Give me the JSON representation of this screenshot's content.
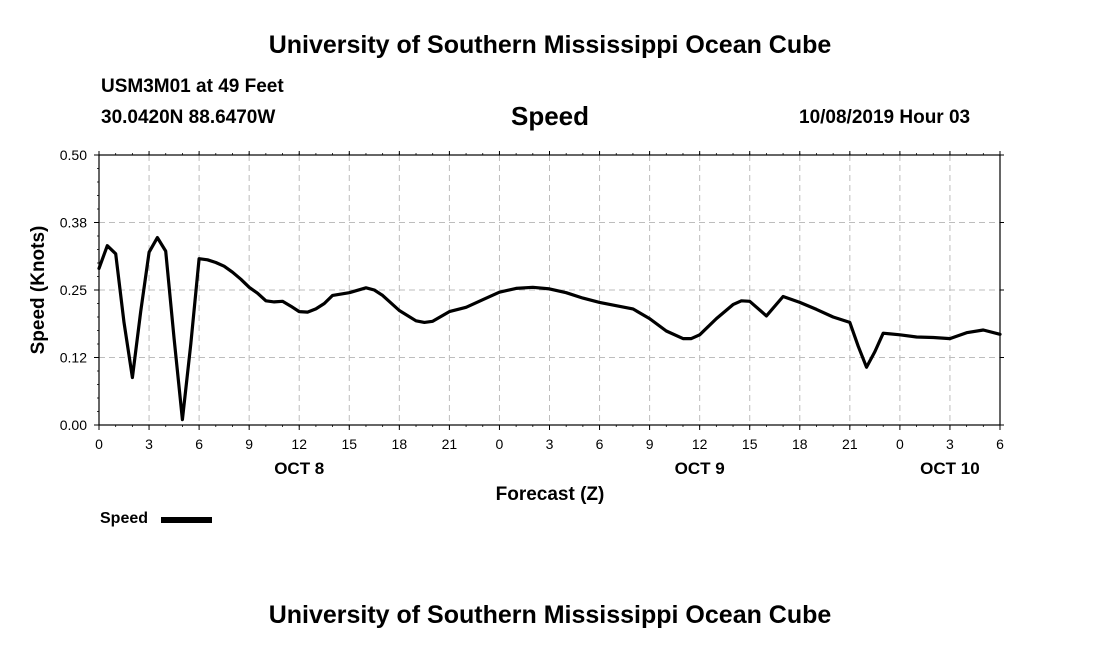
{
  "header": {
    "title": "University of Southern Mississippi Ocean Cube",
    "station": "USM3M01 at 49 Feet",
    "coords": "30.0420N 88.6470W",
    "variable": "Speed",
    "datetime": "10/08/2019 Hour 03"
  },
  "footer": {
    "title": "University of Southern Mississippi Ocean Cube"
  },
  "legend": {
    "label": "Speed",
    "color": "#000000"
  },
  "chart_data": {
    "type": "line",
    "title": "Speed",
    "xlabel": "Forecast (Z)",
    "ylabel": "Speed (Knots)",
    "xlim": [
      0,
      54
    ],
    "ylim": [
      0,
      0.5
    ],
    "grid": true,
    "x_ticks": [
      {
        "x": 0,
        "label": "0"
      },
      {
        "x": 3,
        "label": "3"
      },
      {
        "x": 6,
        "label": "6"
      },
      {
        "x": 9,
        "label": "9"
      },
      {
        "x": 12,
        "label": "12"
      },
      {
        "x": 15,
        "label": "15"
      },
      {
        "x": 18,
        "label": "18"
      },
      {
        "x": 21,
        "label": "21"
      },
      {
        "x": 24,
        "label": "0"
      },
      {
        "x": 27,
        "label": "3"
      },
      {
        "x": 30,
        "label": "6"
      },
      {
        "x": 33,
        "label": "9"
      },
      {
        "x": 36,
        "label": "12"
      },
      {
        "x": 39,
        "label": "15"
      },
      {
        "x": 42,
        "label": "18"
      },
      {
        "x": 45,
        "label": "21"
      },
      {
        "x": 48,
        "label": "0"
      },
      {
        "x": 51,
        "label": "3"
      },
      {
        "x": 54,
        "label": "6"
      }
    ],
    "y_ticks": [
      {
        "y": 0.0,
        "label": "0.00"
      },
      {
        "y": 0.125,
        "label": "0.12"
      },
      {
        "y": 0.25,
        "label": "0.25"
      },
      {
        "y": 0.375,
        "label": "0.38"
      },
      {
        "y": 0.5,
        "label": "0.50"
      }
    ],
    "date_labels": [
      {
        "x": 12,
        "label": "OCT 8"
      },
      {
        "x": 36,
        "label": "OCT 9"
      },
      {
        "x": 51,
        "label": "OCT 10"
      }
    ],
    "series": [
      {
        "name": "Speed",
        "color": "#000000",
        "x": [
          0,
          0.5,
          1,
          1.5,
          2,
          2.5,
          3,
          3.5,
          4,
          4.5,
          5,
          5.5,
          6,
          6.5,
          7,
          7.5,
          8,
          8.5,
          9,
          9.5,
          10,
          10.5,
          11,
          11.5,
          12,
          12.5,
          13,
          13.5,
          14,
          15,
          16,
          16.5,
          17,
          18,
          19,
          19.5,
          20,
          21,
          22,
          23,
          24,
          25,
          26,
          27,
          28,
          29,
          30,
          31,
          32,
          33,
          34,
          35,
          35.5,
          36,
          37,
          38,
          38.5,
          39,
          40,
          41,
          42,
          43,
          44,
          45,
          45.5,
          46,
          46.5,
          47,
          48,
          49,
          50,
          51,
          52,
          53,
          54
        ],
        "values": [
          0.29,
          0.332,
          0.317,
          0.19,
          0.088,
          0.21,
          0.32,
          0.347,
          0.322,
          0.16,
          0.01,
          0.15,
          0.308,
          0.306,
          0.301,
          0.294,
          0.283,
          0.27,
          0.255,
          0.244,
          0.23,
          0.228,
          0.229,
          0.22,
          0.21,
          0.209,
          0.215,
          0.225,
          0.24,
          0.245,
          0.254,
          0.25,
          0.24,
          0.212,
          0.193,
          0.19,
          0.192,
          0.21,
          0.218,
          0.232,
          0.246,
          0.253,
          0.255,
          0.252,
          0.245,
          0.235,
          0.227,
          0.221,
          0.215,
          0.197,
          0.174,
          0.16,
          0.16,
          0.167,
          0.197,
          0.223,
          0.23,
          0.229,
          0.202,
          0.238,
          0.227,
          0.214,
          0.2,
          0.19,
          0.146,
          0.107,
          0.136,
          0.17,
          0.167,
          0.163,
          0.162,
          0.16,
          0.171,
          0.176,
          0.168
        ]
      }
    ]
  }
}
